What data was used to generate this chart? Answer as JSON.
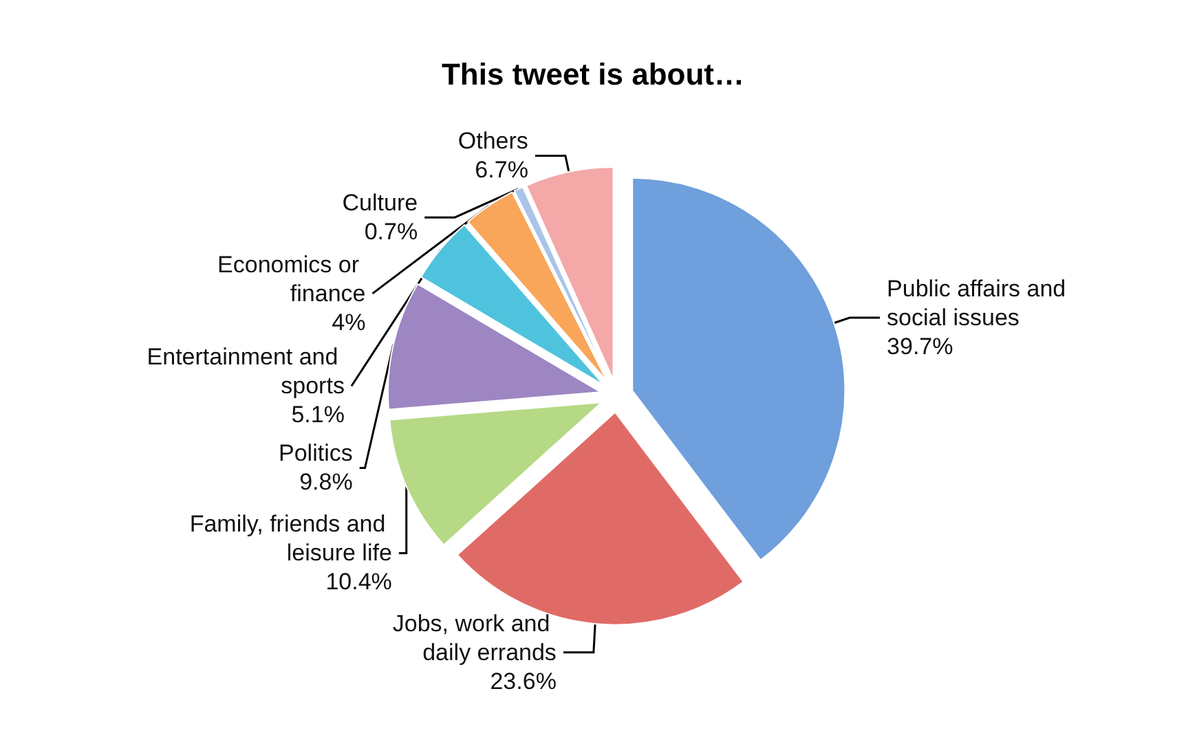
{
  "chart_data": {
    "type": "pie",
    "title": "This tweet is about…",
    "categories": [
      "Public affairs and social issues",
      "Jobs, work and daily errands",
      "Family, friends and leisure life",
      "Politics",
      "Entertainment and sports",
      "Economics or finance",
      "Culture",
      "Others"
    ],
    "values": [
      39.7,
      23.6,
      10.4,
      9.8,
      5.1,
      4,
      0.7,
      6.7
    ],
    "value_labels": [
      "39.7%",
      "23.6%",
      "10.4%",
      "9.8%",
      "5.1%",
      "4%",
      "0.7%",
      "6.7%"
    ],
    "colors": [
      "#6f9fdc",
      "#e06b66",
      "#b5d985",
      "#9d86c2",
      "#4fc3dd",
      "#f9a65a",
      "#a9c4e8",
      "#f4a8a8"
    ],
    "legend": false
  }
}
